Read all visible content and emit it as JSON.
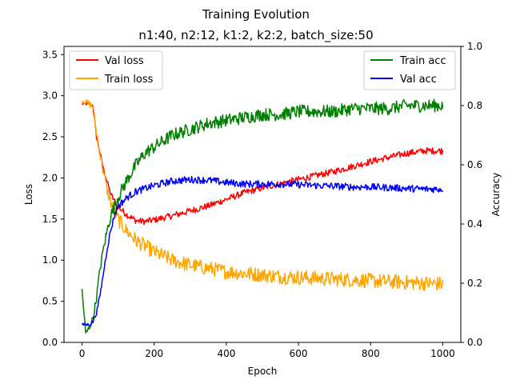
{
  "chart_data": {
    "type": "line",
    "title": "Training Evolution",
    "subtitle": "n1:40, n2:12, k1:2, k2:2, batch_size:50",
    "xlabel": "Epoch",
    "ylabel_left": "Loss",
    "ylabel_right": "Accuracy",
    "xlim": [
      -50,
      1050
    ],
    "ylim_left": [
      0,
      3.6
    ],
    "ylim_right": [
      0,
      1.0
    ],
    "x_ticks": [
      0,
      200,
      400,
      600,
      800,
      1000
    ],
    "y_ticks_left": [
      0.0,
      0.5,
      1.0,
      1.5,
      2.0,
      2.5,
      3.0,
      3.5
    ],
    "y_ticks_right": [
      0.0,
      0.2,
      0.4,
      0.6,
      0.8,
      1.0
    ],
    "grid": false,
    "legend_left_placement": "upper-left",
    "legend_right_placement": "upper-right",
    "x": [
      0,
      10,
      20,
      30,
      40,
      50,
      60,
      70,
      80,
      90,
      100,
      125,
      150,
      175,
      200,
      250,
      300,
      350,
      400,
      450,
      500,
      550,
      600,
      650,
      700,
      750,
      800,
      850,
      900,
      950,
      1000
    ],
    "series": [
      {
        "name": "Val loss",
        "axis": "left",
        "color": "#ff0000",
        "noise": 0.04,
        "values": [
          2.9,
          2.9,
          2.9,
          2.88,
          2.5,
          2.3,
          2.1,
          1.95,
          1.8,
          1.72,
          1.65,
          1.55,
          1.48,
          1.47,
          1.49,
          1.54,
          1.6,
          1.66,
          1.74,
          1.82,
          1.88,
          1.93,
          1.98,
          2.03,
          2.08,
          2.14,
          2.2,
          2.25,
          2.3,
          2.33,
          2.33
        ]
      },
      {
        "name": "Train loss",
        "axis": "left",
        "color": "#ffa500",
        "noise": 0.09,
        "values": [
          2.95,
          2.92,
          2.9,
          2.87,
          2.55,
          2.3,
          2.05,
          1.85,
          1.7,
          1.6,
          1.5,
          1.35,
          1.24,
          1.17,
          1.1,
          1.0,
          0.94,
          0.9,
          0.86,
          0.84,
          0.82,
          0.8,
          0.79,
          0.78,
          0.77,
          0.76,
          0.75,
          0.74,
          0.73,
          0.72,
          0.71
        ]
      },
      {
        "name": "Train acc",
        "axis": "right",
        "color": "#008000",
        "noise": 0.022,
        "values": [
          0.18,
          0.03,
          0.05,
          0.08,
          0.15,
          0.25,
          0.32,
          0.38,
          0.43,
          0.46,
          0.49,
          0.55,
          0.6,
          0.64,
          0.66,
          0.7,
          0.72,
          0.74,
          0.75,
          0.76,
          0.77,
          0.77,
          0.78,
          0.78,
          0.78,
          0.79,
          0.79,
          0.79,
          0.8,
          0.8,
          0.8
        ]
      },
      {
        "name": "Val acc",
        "axis": "right",
        "color": "#0000ff",
        "noise": 0.012,
        "values": [
          0.06,
          0.06,
          0.06,
          0.07,
          0.1,
          0.16,
          0.24,
          0.32,
          0.38,
          0.43,
          0.46,
          0.49,
          0.51,
          0.52,
          0.53,
          0.545,
          0.55,
          0.548,
          0.54,
          0.535,
          0.535,
          0.535,
          0.533,
          0.53,
          0.528,
          0.525,
          0.525,
          0.523,
          0.52,
          0.518,
          0.518
        ]
      }
    ]
  }
}
